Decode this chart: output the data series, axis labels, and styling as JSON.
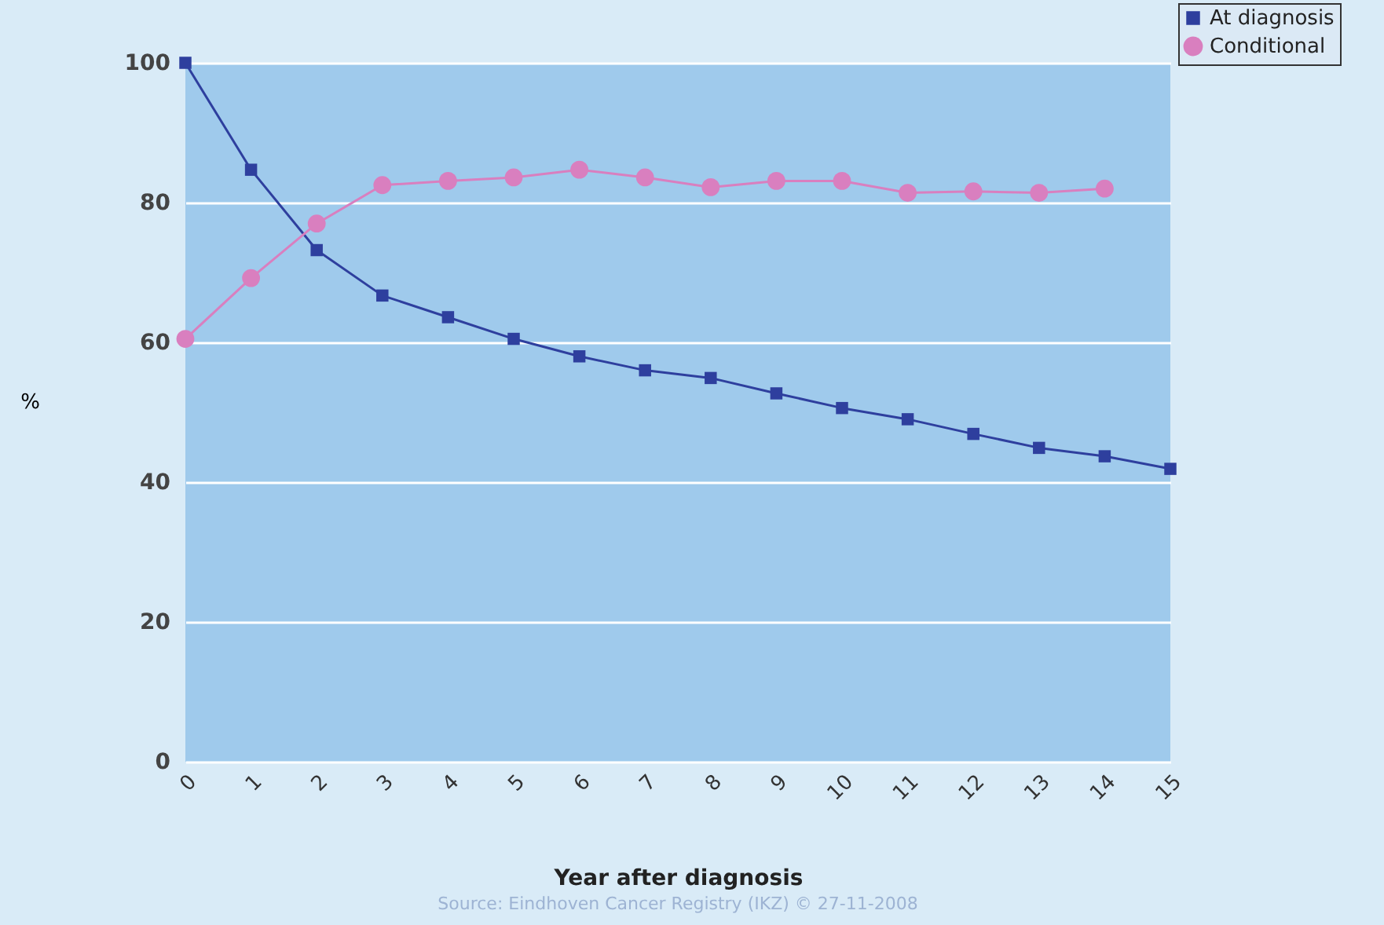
{
  "chart_data": {
    "type": "line",
    "xlabel": "Year after diagnosis",
    "ylabel": "%",
    "x": [
      0,
      1,
      2,
      3,
      4,
      5,
      6,
      7,
      8,
      9,
      10,
      11,
      12,
      13,
      14,
      15
    ],
    "series": [
      {
        "name": "At diagnosis",
        "color": "#2e3f9e",
        "marker": "square",
        "values": [
          100,
          84.7,
          73.2,
          66.7,
          63.6,
          60.5,
          58,
          56,
          54.9,
          52.7,
          50.6,
          49,
          46.9,
          44.9,
          43.7,
          41.9
        ]
      },
      {
        "name": "Conditional",
        "color": "#d97fbf",
        "marker": "circle",
        "values": [
          60.5,
          69.2,
          77,
          82.5,
          83.1,
          83.6,
          84.7,
          83.6,
          82.2,
          83.1,
          83.1,
          81.4,
          81.6,
          81.4,
          82,
          null
        ]
      }
    ],
    "xlim": [
      0,
      15
    ],
    "xticks": [
      0,
      1,
      2,
      3,
      4,
      5,
      6,
      7,
      8,
      9,
      10,
      11,
      12,
      13,
      14,
      15
    ],
    "ylim": [
      0,
      100
    ],
    "yticks": [
      0,
      20,
      40,
      60,
      80,
      100
    ],
    "grid": "y",
    "legend": "top right",
    "annotations": [
      "Source: Eindhoven Cancer Registry (IKZ) © 27-11-2008"
    ]
  }
}
